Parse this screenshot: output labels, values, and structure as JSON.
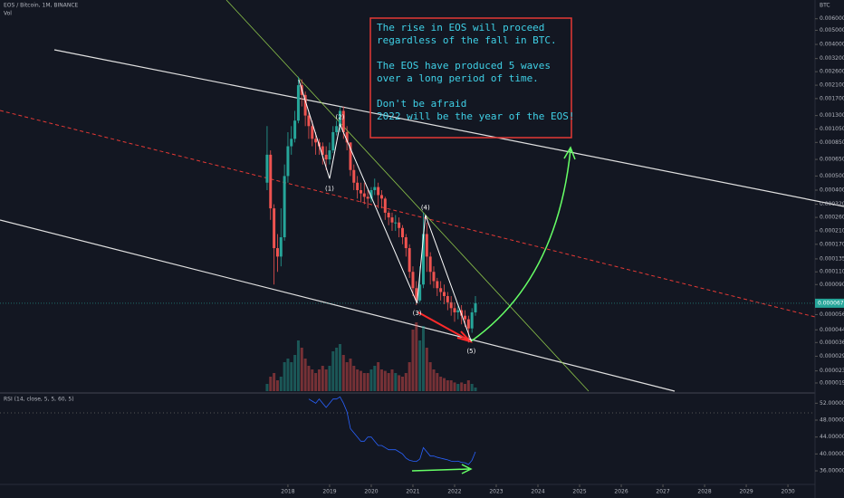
{
  "chart_data": {
    "type": "candlestick",
    "title": "EOS / Bitcoin, 1M, BINANCE",
    "volume_label": "Vol",
    "y_unit": "BTC",
    "log_scale": true,
    "up_color": "#26a69a",
    "down_color": "#ef5350",
    "x": [
      2017.5,
      2017.583,
      2017.667,
      2017.75,
      2017.833,
      2017.917,
      2018,
      2018.083,
      2018.167,
      2018.25,
      2018.333,
      2018.417,
      2018.5,
      2018.583,
      2018.667,
      2018.75,
      2018.833,
      2018.917,
      2019,
      2019.083,
      2019.167,
      2019.25,
      2019.333,
      2019.417,
      2019.5,
      2019.583,
      2019.667,
      2019.75,
      2019.833,
      2019.917,
      2020,
      2020.083,
      2020.167,
      2020.25,
      2020.333,
      2020.417,
      2020.5,
      2020.583,
      2020.667,
      2020.75,
      2020.833,
      2020.917,
      2021,
      2021.083,
      2021.167,
      2021.25,
      2021.333,
      2021.417,
      2021.5,
      2021.583,
      2021.667,
      2021.75,
      2021.833,
      2021.917,
      2022,
      2022.083,
      2022.167,
      2022.25,
      2022.333,
      2022.417,
      2022.5
    ],
    "open": [
      0.00045,
      0.0007,
      0.0003,
      0.00016,
      0.00014,
      0.00019,
      0.0005,
      0.0008,
      0.0009,
      0.0012,
      0.0021,
      0.0018,
      0.0013,
      0.0011,
      0.0009,
      0.00085,
      0.0008,
      0.0007,
      0.00065,
      0.00075,
      0.001,
      0.0011,
      0.0014,
      0.001,
      0.00085,
      0.00055,
      0.00045,
      0.0004,
      0.00038,
      0.00036,
      0.00035,
      0.0004,
      0.00042,
      0.00037,
      0.00035,
      0.00028,
      0.00026,
      0.00024,
      0.00024,
      0.00022,
      0.00019,
      0.00016,
      0.00011,
      8.5e-05,
      7e-05,
      9e-05,
      0.0002,
      0.00014,
      0.00011,
      9.5e-05,
      8.5e-05,
      8e-05,
      7.5e-05,
      6.8e-05,
      6.2e-05,
      5.8e-05,
      6e-05,
      5.5e-05,
      5.2e-05,
      4.5e-05,
      5.8e-05
    ],
    "high": [
      0.0011,
      0.00075,
      0.00032,
      0.0002,
      0.0003,
      0.0006,
      0.001,
      0.0011,
      0.0014,
      0.0024,
      0.0023,
      0.0019,
      0.0014,
      0.0012,
      0.001,
      0.0009,
      0.00085,
      0.0008,
      0.00085,
      0.0011,
      0.0012,
      0.0015,
      0.0015,
      0.0011,
      0.00085,
      0.0006,
      0.0005,
      0.00045,
      0.00045,
      0.0004,
      0.00042,
      0.00048,
      0.00045,
      0.0004,
      0.00036,
      0.00029,
      0.00028,
      0.00027,
      0.00026,
      0.00023,
      0.0002,
      0.00017,
      0.00012,
      9.5e-05,
      0.00012,
      0.00028,
      0.00024,
      0.00015,
      0.00012,
      0.0001,
      9.5e-05,
      9e-05,
      8e-05,
      7.5e-05,
      6.8e-05,
      6.6e-05,
      6.5e-05,
      6e-05,
      5.5e-05,
      6.2e-05,
      7.5e-05
    ],
    "low": [
      0.0004,
      0.00025,
      9e-05,
      0.00011,
      0.00012,
      0.00018,
      0.00045,
      0.0007,
      0.00085,
      0.00115,
      0.0015,
      0.0011,
      0.0009,
      0.0008,
      0.0007,
      0.0007,
      0.0006,
      0.00055,
      0.0006,
      0.00072,
      0.00095,
      0.001,
      0.0009,
      0.00075,
      0.0005,
      0.0004,
      0.00035,
      0.00033,
      0.00032,
      0.0003,
      0.00033,
      0.00037,
      0.0003,
      0.0003,
      0.00025,
      0.00023,
      0.00021,
      0.00021,
      0.00019,
      0.00017,
      0.00014,
      0.0001,
      7.5e-05,
      6.5e-05,
      6.8e-05,
      8.5e-05,
      0.00011,
      9e-05,
      8.5e-05,
      7.5e-05,
      7e-05,
      6.6e-05,
      6e-05,
      5.5e-05,
      5e-05,
      5.2e-05,
      4.8e-05,
      4.6e-05,
      3.6e-05,
      4.2e-05,
      5.5e-05
    ],
    "close": [
      0.0007,
      0.0003,
      0.00016,
      0.00014,
      0.00019,
      0.0005,
      0.0008,
      0.0009,
      0.0012,
      0.0021,
      0.0018,
      0.0013,
      0.0011,
      0.0009,
      0.00085,
      0.0008,
      0.0007,
      0.00065,
      0.00075,
      0.001,
      0.0011,
      0.0014,
      0.001,
      0.00085,
      0.00055,
      0.00045,
      0.0004,
      0.00038,
      0.00036,
      0.00035,
      0.0004,
      0.00042,
      0.00037,
      0.00035,
      0.00028,
      0.00026,
      0.00024,
      0.00024,
      0.00022,
      0.00019,
      0.00016,
      0.00011,
      8.5e-05,
      7e-05,
      9e-05,
      0.0002,
      0.00014,
      0.00011,
      9.5e-05,
      8.5e-05,
      8e-05,
      7.5e-05,
      6.8e-05,
      6.2e-05,
      5.8e-05,
      6e-05,
      5.5e-05,
      5.2e-05,
      4.5e-05,
      5.8e-05,
      6.7e-05
    ],
    "xlim": [
      2011.09,
      2030.65
    ],
    "xticks": [
      2018,
      2019,
      2020,
      2021,
      2022,
      2023,
      2024,
      2025,
      2026,
      2027,
      2028,
      2029,
      2030
    ],
    "ylim": [
      1.67e-05,
      0.00807
    ],
    "yticks": [
      {
        "value": 0.006,
        "label": "0.0060000"
      },
      {
        "value": 0.005,
        "label": "0.0050000"
      },
      {
        "value": 0.004,
        "label": "0.0040000"
      },
      {
        "value": 0.0032,
        "label": "0.0032000"
      },
      {
        "value": 0.0026,
        "label": "0.0026000"
      },
      {
        "value": 0.0021,
        "label": "0.0021000"
      },
      {
        "value": 0.0017,
        "label": "0.0017000"
      },
      {
        "value": 0.0013,
        "label": "0.0013000"
      },
      {
        "value": 0.00105,
        "label": "0.0010500"
      },
      {
        "value": 0.00085,
        "label": "0.0008500"
      },
      {
        "value": 0.00065,
        "label": "0.0006500"
      },
      {
        "value": 0.0005,
        "label": "0.0005000"
      },
      {
        "value": 0.0004,
        "label": "0.0004000"
      },
      {
        "value": 0.00032,
        "label": "0.0003200"
      },
      {
        "value": 0.00026,
        "label": "0.0002600"
      },
      {
        "value": 0.00021,
        "label": "0.0002100"
      },
      {
        "value": 0.00017,
        "label": "0.0001700"
      },
      {
        "value": 0.000135,
        "label": "0.0001350"
      },
      {
        "value": 0.00011,
        "label": "0.0001100"
      },
      {
        "value": 9e-05,
        "label": "0.0000900"
      },
      {
        "value": 5.6e-05,
        "label": "0.0000560"
      },
      {
        "value": 4.4e-05,
        "label": "0.0000440"
      },
      {
        "value": 3.6e-05,
        "label": "0.0000360"
      },
      {
        "value": 2.9e-05,
        "label": "0.0000290"
      },
      {
        "value": 2.3e-05,
        "label": "0.0000230"
      },
      {
        "value": 1.9e-05,
        "label": "0.0000190"
      }
    ],
    "last_price": {
      "value": 6.7e-05,
      "label": "0.0000670"
    },
    "volume": {
      "ylim": [
        0,
        100
      ],
      "values": [
        10,
        20,
        25,
        15,
        20,
        40,
        45,
        40,
        50,
        70,
        60,
        45,
        35,
        30,
        25,
        30,
        35,
        30,
        35,
        55,
        60,
        65,
        50,
        40,
        45,
        35,
        30,
        28,
        25,
        25,
        30,
        35,
        40,
        30,
        28,
        25,
        30,
        25,
        22,
        20,
        25,
        40,
        85,
        95,
        70,
        90,
        60,
        40,
        30,
        25,
        20,
        18,
        15,
        15,
        12,
        10,
        12,
        10,
        15,
        10,
        5
      ]
    },
    "rsi": {
      "label": "RSI (14, close, 5, 5, 60, 5)",
      "color": "#2962ff",
      "ylim": [
        33,
        54
      ],
      "yticks": [
        {
          "value": 52,
          "label": "52.000000"
        },
        {
          "value": 48,
          "label": "48.000000"
        },
        {
          "value": 44,
          "label": "44.000000"
        },
        {
          "value": 40,
          "label": "40.000000"
        },
        {
          "value": 36,
          "label": "36.000000"
        }
      ],
      "values": [
        null,
        null,
        null,
        null,
        null,
        null,
        null,
        null,
        null,
        null,
        null,
        null,
        53,
        52.5,
        52,
        53,
        52,
        51,
        52,
        53,
        53,
        53.5,
        52,
        50,
        46,
        45,
        44,
        43,
        43,
        44,
        44,
        43,
        42,
        42,
        41.5,
        41,
        41,
        41,
        40.5,
        40,
        39,
        38.5,
        38.3,
        38.2,
        38.8,
        41.5,
        40.5,
        39.5,
        39.5,
        39.2,
        39,
        38.8,
        38.6,
        38.3,
        38.2,
        38.3,
        38,
        37.9,
        37.5,
        38.5,
        40.5
      ]
    },
    "waves": [
      {
        "label": null,
        "x": 2018.26,
        "price": 0.00229
      },
      {
        "label": "(1)",
        "x": 2019.0,
        "price": 0.00048
      },
      {
        "label": "(2)",
        "x": 2019.25,
        "price": 0.00113
      },
      {
        "label": "(3)",
        "x": 2021.1,
        "price": 6.7e-05
      },
      {
        "label": "(4)",
        "x": 2021.3,
        "price": 0.00027
      },
      {
        "label": "(5)",
        "x": 2022.4,
        "price": 3.67e-05
      }
    ],
    "annotation": [
      [
        "The rise in EOS will proceed",
        "regardless of the fall in BTC."
      ],
      [
        "The EOS have produced 5 waves",
        "over a long period of time."
      ],
      [
        "Don't be afraid",
        "2022 will be the year of the EOS!"
      ]
    ]
  }
}
